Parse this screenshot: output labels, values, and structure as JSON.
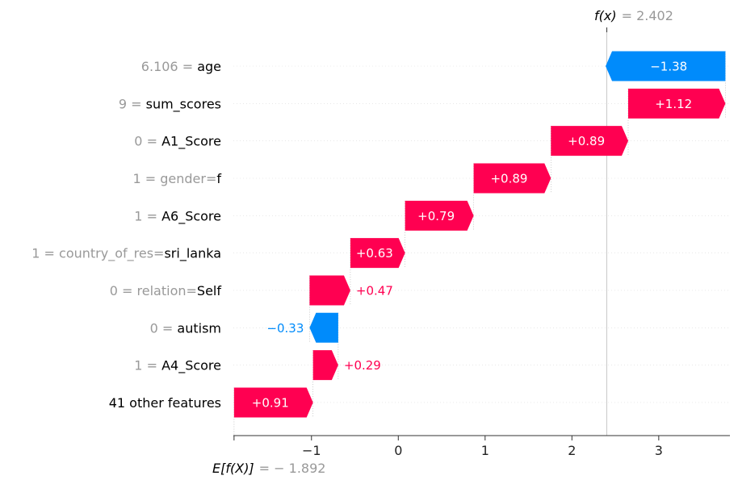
{
  "chart_data": {
    "type": "waterfall",
    "base_value": -1.892,
    "output_value": 2.402,
    "fx_label": "f(x)",
    "fx_value_text": "= 2.402",
    "ex_label": "E[f(X)]",
    "ex_value_text": "= − 1.892",
    "xlim": [
      -1.9,
      3.82
    ],
    "xticks": [
      -1,
      0,
      1,
      2,
      3
    ],
    "xtick_labels": [
      "−1",
      "0",
      "1",
      "2",
      "3"
    ],
    "colors": {
      "positive": "#ff0051",
      "negative": "#008bfb",
      "value_text": "#999999"
    },
    "features": [
      {
        "value": "6.106",
        "name": "age",
        "contribution": -1.38,
        "label": "−1.38"
      },
      {
        "value": "9",
        "name": "sum_scores",
        "contribution": 1.12,
        "label": "+1.12"
      },
      {
        "value": "0",
        "name": "A1_Score",
        "contribution": 0.89,
        "label": "+0.89"
      },
      {
        "value": "1",
        "name": "gender=f",
        "name_grey": "gender=",
        "name_dark": "f",
        "contribution": 0.89,
        "label": "+0.89"
      },
      {
        "value": "1",
        "name": "A6_Score",
        "contribution": 0.79,
        "label": "+0.79"
      },
      {
        "value": "1",
        "name": "country_of_res=sri_lanka",
        "name_grey": "country_of_res=",
        "name_dark": "sri_lanka",
        "contribution": 0.63,
        "label": "+0.63"
      },
      {
        "value": "0",
        "name": "relation=Self",
        "name_grey": "relation=",
        "name_dark": "Self",
        "contribution": 0.47,
        "label": "+0.47"
      },
      {
        "value": "0",
        "name": "autism",
        "contribution": -0.33,
        "label": "−0.33"
      },
      {
        "value": "1",
        "name": "A4_Score",
        "contribution": 0.29,
        "label": "+0.29"
      },
      {
        "value": "",
        "name": "41 other features",
        "contribution": 0.91,
        "label": "+0.91"
      }
    ]
  }
}
